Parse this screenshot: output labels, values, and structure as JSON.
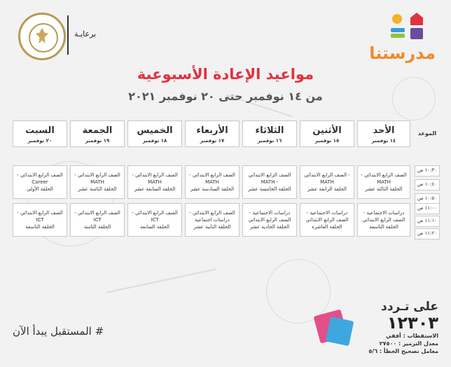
{
  "brand": {
    "name": "مدرستنا"
  },
  "sponsor": {
    "label": "برعايـة"
  },
  "title": "مواعيد الإعادة الأسبوعية",
  "subtitle": "من ١٤ نوفمبر حتى ٢٠ نوفمبر ٢٠٢١",
  "table": {
    "time_header": "الموعد",
    "days": [
      {
        "day": "الأحد",
        "date": "١٤ نوفمبر"
      },
      {
        "day": "الأثنين",
        "date": "١٥ نوفمبر"
      },
      {
        "day": "الثلاثاء",
        "date": "١٦ نوفمبر"
      },
      {
        "day": "الأربعاء",
        "date": "١٧ نوفمبر"
      },
      {
        "day": "الخميس",
        "date": "١٨ نوفمبر"
      },
      {
        "day": "الجمعة",
        "date": "١٩ نوفمبر"
      },
      {
        "day": "السبت",
        "date": "٢٠ نوفمبر"
      }
    ],
    "times": [
      "١٠:٣٠ ص",
      "١٠:٤٠ ص",
      "١٠:٥٠ ص",
      "١١:٠٠ ص",
      "١١:١٠ ص",
      "١١:٢٠ ص"
    ],
    "block1": [
      [
        "الصف الرابع الابتدائي -",
        "MATH",
        "الحلقة الثالثة عشر"
      ],
      [
        "- الصف الرابع الابتدائي",
        "MATH",
        "الحلقة الرابعة عشر"
      ],
      [
        "الصف الرابع الابتدائي",
        "- MATH",
        "الحلقة الخامسة عشر"
      ],
      [
        "الصف الرابع الابتدائي -",
        "MATH",
        "الحلقة السادسة عشر"
      ],
      [
        "الصف الرابع الابتدائي -",
        "MATH",
        "الحلقة السابعة عشر"
      ],
      [
        "الصف الرابع الابتدائي -",
        "MATH",
        "الحلقة الثامنة عشر"
      ],
      [
        "الصف الرابع الابتدائي -",
        "Career",
        "الحلقة الأولى"
      ]
    ],
    "block2": [
      [
        "دراسات الاجتماعية -",
        "الصف الرابع الابتدائي",
        "الحلقة التاسعة"
      ],
      [
        "دراسات الاجتماعية -",
        "الصف الرابع الابتدائي",
        "الحلقة العاشرة"
      ],
      [
        "دراسات الاجتماعية -",
        "الصف الرابع الابتدائي",
        "الحلقة الحادية عشر"
      ],
      [
        "الصف الرابع الابتدائي -",
        "دراسات اجتماعية",
        "الحلقة الثانية عشر"
      ],
      [
        "الصف الرابع الابتدائي -",
        "ICT",
        "الحلقة السابعة"
      ],
      [
        "الصف الرابع الابتدائي -",
        "ICT",
        "الحلقة الثامنة"
      ],
      [
        "الصف الرابع الابتدائي -",
        "ICT",
        "الحلقة التاسعة"
      ]
    ]
  },
  "footer": {
    "hashtag": "# المستقبل يبدأ الآن",
    "on_freq": "على تـردد",
    "frequency": "١٢٣٠٣",
    "lines": [
      "الاستقطاب : أفقي",
      "معدل الترميز : ٢٧٥٠٠",
      "معامل تصحيح الخطأ : ٥/٦"
    ]
  },
  "colors": {
    "title": "#e2323f",
    "brand": "#f08a2c"
  }
}
